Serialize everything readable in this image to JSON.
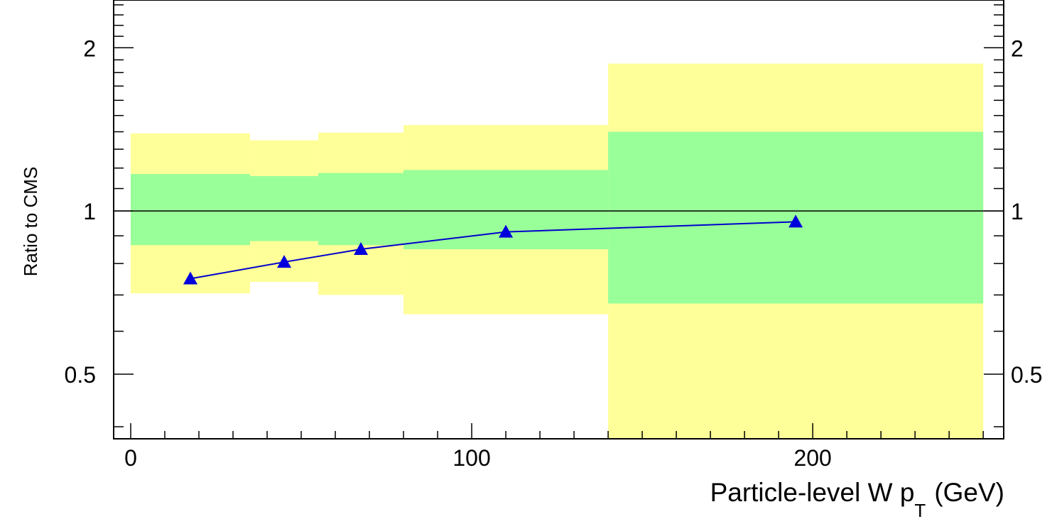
{
  "chart_data": {
    "type": "line",
    "xlabel": "Particle-level W p",
    "xlabel_sub": "T",
    "xlabel_unit": "(GeV)",
    "ylabel": "Ratio to CMS",
    "log_y": true,
    "xlim": [
      -5,
      256
    ],
    "ylim": [
      0.38,
      2.45
    ],
    "x_ticks": [
      0,
      100,
      200
    ],
    "x_tick_labels": [
      "0",
      "100",
      "200"
    ],
    "y_ticks": [
      0.5,
      1,
      2
    ],
    "y_tick_labels": [
      "0.5",
      "1",
      "2"
    ],
    "y_tick_labels_right": [
      "0.5",
      "1",
      "2"
    ],
    "reference_line": 1,
    "colors": {
      "outer_band": "#ffff99",
      "inner_band": "#99ff99",
      "series": "#0000cc",
      "marker": "#0000dd"
    },
    "bands": [
      {
        "x0": 0,
        "x1": 35,
        "inner": [
          0.865,
          1.17
        ],
        "outer": [
          0.705,
          1.39
        ]
      },
      {
        "x0": 35,
        "x1": 55,
        "inner": [
          0.88,
          1.16
        ],
        "outer": [
          0.74,
          1.35
        ]
      },
      {
        "x0": 55,
        "x1": 80,
        "inner": [
          0.865,
          1.175
        ],
        "outer": [
          0.7,
          1.395
        ]
      },
      {
        "x0": 80,
        "x1": 140,
        "inner": [
          0.85,
          1.19
        ],
        "outer": [
          0.645,
          1.44
        ]
      },
      {
        "x0": 140,
        "x1": 250,
        "inner": [
          0.675,
          1.4
        ],
        "outer": [
          0.38,
          1.87
        ]
      }
    ],
    "series": [
      {
        "x": [
          17.5,
          45,
          67.5,
          110,
          195
        ],
        "values": [
          0.75,
          0.805,
          0.85,
          0.915,
          0.955
        ]
      }
    ]
  }
}
